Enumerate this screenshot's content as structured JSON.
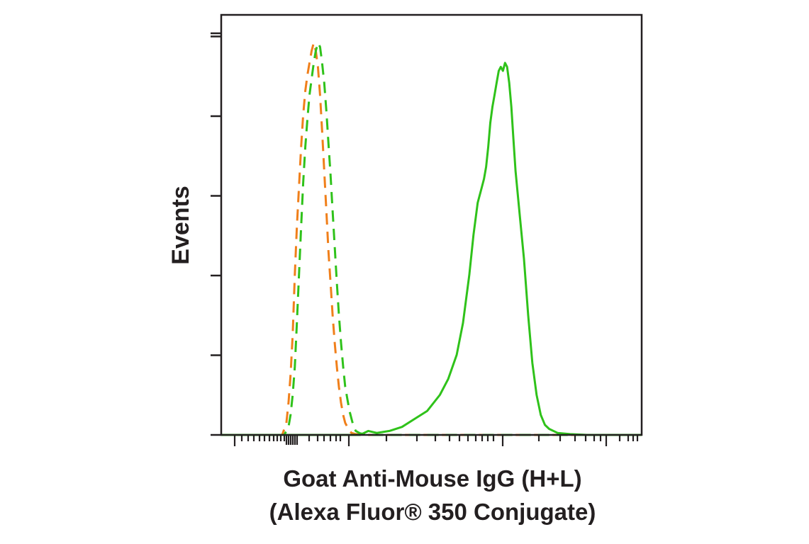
{
  "chart_data": {
    "type": "line",
    "title": "",
    "xlabel_lines": [
      "Goat Anti-Mouse IgG (H+L)",
      "(Alexa Fluor® 350 Conjugate)"
    ],
    "ylabel": "Events",
    "x_scale": "log",
    "x_tick_labels": [],
    "y_tick_labels": [],
    "xlim": [
      0,
      1
    ],
    "ylim": [
      0,
      1.05
    ],
    "grid": false,
    "legend": "none",
    "series": [
      {
        "color": "#f07f1a",
        "dash": "dashed",
        "x": [
          0.0,
          0.1,
          0.145,
          0.155,
          0.16,
          0.165,
          0.17,
          0.175,
          0.18,
          0.185,
          0.19,
          0.195,
          0.2,
          0.205,
          0.21,
          0.215,
          0.22,
          0.225,
          0.23,
          0.235,
          0.24,
          0.245,
          0.25,
          0.255,
          0.26,
          0.265,
          0.27,
          0.275,
          0.28,
          0.285,
          0.29,
          0.295,
          0.3,
          0.305,
          0.31,
          0.32,
          0.35,
          0.45,
          0.6,
          0.8,
          1.0
        ],
        "y": [
          0.0,
          0.0,
          0.0,
          0.03,
          0.08,
          0.15,
          0.25,
          0.4,
          0.52,
          0.62,
          0.72,
          0.8,
          0.86,
          0.9,
          0.93,
          0.96,
          0.98,
          0.96,
          0.92,
          0.85,
          0.76,
          0.66,
          0.56,
          0.46,
          0.38,
          0.3,
          0.23,
          0.17,
          0.12,
          0.08,
          0.05,
          0.03,
          0.02,
          0.01,
          0.005,
          0.002,
          0.0,
          0.0,
          0.0,
          0.0,
          0.0
        ]
      },
      {
        "color": "#2fc21a",
        "dash": "dashed",
        "x": [
          0.0,
          0.1,
          0.15,
          0.16,
          0.165,
          0.17,
          0.175,
          0.18,
          0.185,
          0.19,
          0.195,
          0.2,
          0.205,
          0.21,
          0.215,
          0.22,
          0.225,
          0.23,
          0.235,
          0.24,
          0.245,
          0.25,
          0.255,
          0.26,
          0.265,
          0.27,
          0.275,
          0.28,
          0.285,
          0.29,
          0.295,
          0.3,
          0.305,
          0.31,
          0.315,
          0.32,
          0.33,
          0.35,
          0.45,
          0.6,
          0.8,
          1.0
        ],
        "y": [
          0.0,
          0.0,
          0.0,
          0.02,
          0.05,
          0.1,
          0.17,
          0.28,
          0.4,
          0.52,
          0.63,
          0.72,
          0.79,
          0.85,
          0.89,
          0.93,
          0.96,
          0.98,
          0.97,
          0.93,
          0.88,
          0.81,
          0.73,
          0.65,
          0.56,
          0.47,
          0.38,
          0.3,
          0.23,
          0.17,
          0.12,
          0.09,
          0.06,
          0.04,
          0.02,
          0.01,
          0.004,
          0.0,
          0.0,
          0.0,
          0.0,
          0.0
        ]
      },
      {
        "color": "#2fc21a",
        "dash": "solid",
        "x": [
          0.0,
          0.33,
          0.35,
          0.37,
          0.4,
          0.43,
          0.46,
          0.49,
          0.52,
          0.54,
          0.56,
          0.575,
          0.59,
          0.6,
          0.61,
          0.62,
          0.625,
          0.63,
          0.635,
          0.64,
          0.645,
          0.65,
          0.655,
          0.66,
          0.665,
          0.67,
          0.675,
          0.68,
          0.685,
          0.69,
          0.695,
          0.7,
          0.71,
          0.72,
          0.73,
          0.74,
          0.75,
          0.76,
          0.77,
          0.78,
          0.8,
          0.83,
          0.87,
          0.93,
          1.0
        ],
        "y": [
          0.0,
          0.0,
          0.01,
          0.005,
          0.01,
          0.02,
          0.04,
          0.06,
          0.1,
          0.14,
          0.2,
          0.28,
          0.4,
          0.5,
          0.58,
          0.62,
          0.64,
          0.67,
          0.72,
          0.78,
          0.82,
          0.85,
          0.88,
          0.91,
          0.92,
          0.91,
          0.93,
          0.92,
          0.88,
          0.82,
          0.74,
          0.66,
          0.55,
          0.44,
          0.3,
          0.18,
          0.1,
          0.05,
          0.025,
          0.015,
          0.005,
          0.002,
          0.0,
          0.0,
          0.0
        ]
      }
    ]
  }
}
